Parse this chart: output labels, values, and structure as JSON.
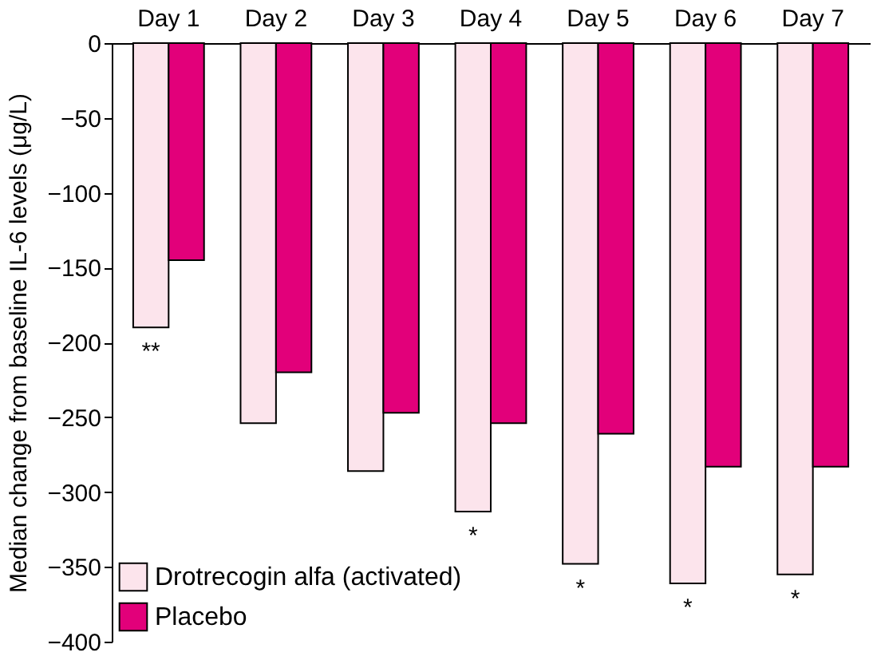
{
  "chart_data": {
    "type": "bar",
    "ylabel": "Median change from baseline IL-6 levels (μg/L)",
    "categories": [
      "Day 1",
      "Day 2",
      "Day 3",
      "Day 4",
      "Day 5",
      "Day 6",
      "Day 7"
    ],
    "series": [
      {
        "name": "Drotrecogin alfa (activated)",
        "color": "#fce4ec",
        "values": [
          -190,
          -254,
          -286,
          -313,
          -348,
          -361,
          -355
        ]
      },
      {
        "name": "Placebo",
        "color": "#e2007a",
        "values": [
          -145,
          -220,
          -247,
          -254,
          -261,
          -283,
          -283
        ]
      }
    ],
    "ylim": [
      -400,
      0
    ],
    "yticks": [
      -400,
      -350,
      -300,
      -250,
      -200,
      -150,
      -100,
      -50,
      0
    ],
    "grid": false,
    "legend": "bottom left",
    "annotations": [
      {
        "text": "**",
        "x": "Day 1",
        "y": -190
      },
      {
        "text": "*",
        "x": "Day 4",
        "y": -313
      },
      {
        "text": "*",
        "x": "Day 5",
        "y": -348
      },
      {
        "text": "*",
        "x": "Day 6",
        "y": -361
      },
      {
        "text": "*",
        "x": "Day 7",
        "y": -355
      }
    ]
  }
}
